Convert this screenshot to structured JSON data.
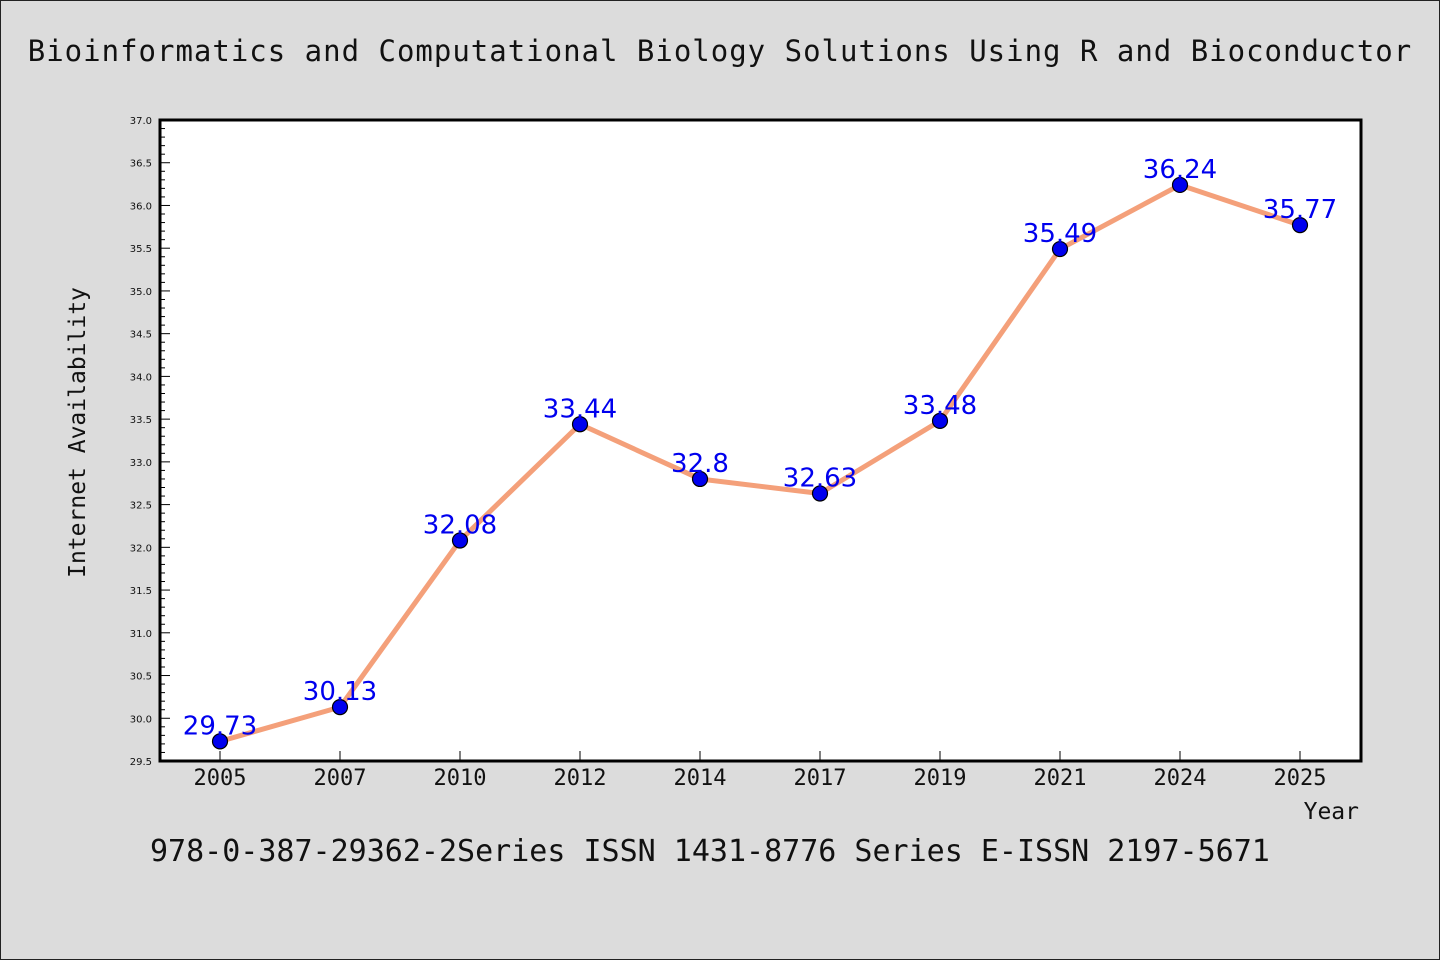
{
  "footer": {
    "text": "978-0-387-29362-2Series ISSN 1431-8776 Series E-ISSN 2197-5671"
  },
  "colors": {
    "background": "#dcdcdc",
    "line": "#f4a07a",
    "marker": "#0000ee",
    "label": "#0000ee"
  },
  "chart_data": {
    "type": "line",
    "title": "Bioinformatics and Computational Biology Solutions Using R and Bioconductor",
    "xlabel": "Year",
    "ylabel": "Internet Availability",
    "categories": [
      "2005",
      "2007",
      "2010",
      "2012",
      "2014",
      "2017",
      "2019",
      "2021",
      "2024",
      "2025"
    ],
    "values": [
      29.73,
      30.13,
      32.08,
      33.44,
      32.8,
      32.63,
      33.48,
      35.49,
      36.24,
      35.77
    ],
    "value_labels": [
      "29.73",
      "30.13",
      "32.08",
      "33.44",
      "32.8",
      "32.63",
      "33.48",
      "35.49",
      "36.24",
      "35.77"
    ],
    "ylim": [
      29.5,
      37.0
    ],
    "yticks": [
      "29.5",
      "30.0",
      "30.5",
      "31.0",
      "31.5",
      "32.0",
      "32.5",
      "33.0",
      "33.5",
      "34.0",
      "34.5",
      "35.0",
      "35.5",
      "36.0",
      "36.5",
      "37.0"
    ],
    "grid": false,
    "legend": "none"
  }
}
